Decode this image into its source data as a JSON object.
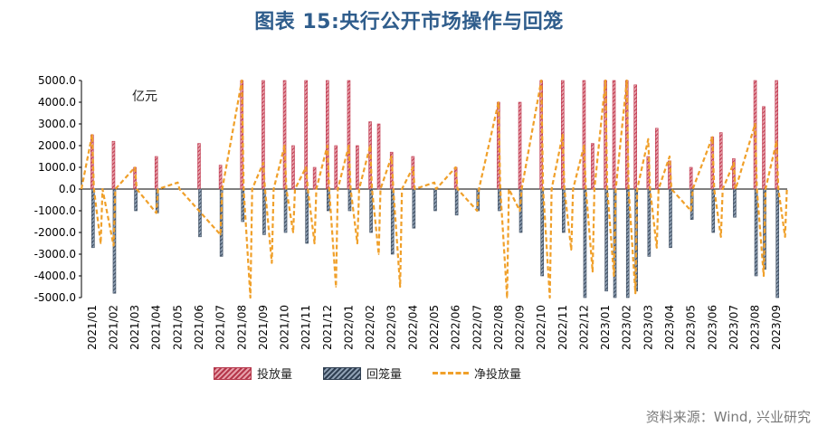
{
  "figure": {
    "title": "图表 15:央行公开市场操作与回笼",
    "unit": "亿元",
    "source": "资料来源：Wind, 兴业研究"
  },
  "legend": {
    "injection": "投放量",
    "withdrawal": "回笼量",
    "net": "净投放量"
  },
  "colors": {
    "injection": "#c0394f",
    "withdrawal": "#3b4b5f",
    "net": "#f0a02a"
  },
  "chart_data": {
    "type": "bar",
    "ylim": [
      -5000,
      5000
    ],
    "y_ticks": [
      "5000.0",
      "4000.0",
      "3000.0",
      "2000.0",
      "1000.0",
      "0.0",
      "-1000.0",
      "-2000.0",
      "-3000.0",
      "-4000.0",
      "-5000.0"
    ],
    "x_ticks": [
      "2021/01",
      "2021/02",
      "2021/03",
      "2021/04",
      "2021/05",
      "2021/06",
      "2021/07",
      "2021/08",
      "2021/09",
      "2021/10",
      "2021/11",
      "2021/12",
      "2022/01",
      "2022/02",
      "2022/03",
      "2022/04",
      "2022/05",
      "2022/06",
      "2022/07",
      "2022/08",
      "2022/09",
      "2022/10",
      "2022/11",
      "2022/12",
      "2023/01",
      "2023/02",
      "2023/03",
      "2023/04",
      "2023/05",
      "2023/06",
      "2023/07",
      "2023/08",
      "2023/09"
    ],
    "series": [
      {
        "name": "投放量",
        "points": [
          [
            "2021/01",
            2500
          ],
          [
            "2021/02",
            2200
          ],
          [
            "2021/03",
            1000
          ],
          [
            "2021/04",
            1500
          ],
          [
            "2021/06",
            2100
          ],
          [
            "2021/07",
            1100
          ],
          [
            "2021/08",
            5000
          ],
          [
            "2021/09",
            5000
          ],
          [
            "2021/10",
            5000
          ],
          [
            "2021/10b",
            2000
          ],
          [
            "2021/11",
            5000
          ],
          [
            "2021/11b",
            1000
          ],
          [
            "2021/12",
            5000
          ],
          [
            "2021/12b",
            2000
          ],
          [
            "2022/01",
            5000
          ],
          [
            "2022/01b",
            2000
          ],
          [
            "2022/02",
            3100
          ],
          [
            "2022/02b",
            3000
          ],
          [
            "2022/03",
            1700
          ],
          [
            "2022/04",
            1500
          ],
          [
            "2022/06",
            1000
          ],
          [
            "2022/08",
            4000
          ],
          [
            "2022/09",
            4000
          ],
          [
            "2022/10",
            5000
          ],
          [
            "2022/11",
            5000
          ],
          [
            "2022/12",
            5000
          ],
          [
            "2022/12b",
            2100
          ],
          [
            "2023/01",
            5000
          ],
          [
            "2023/01b",
            5000
          ],
          [
            "2023/02",
            5000
          ],
          [
            "2023/02b",
            4800
          ],
          [
            "2023/03",
            1500
          ],
          [
            "2023/03b",
            2800
          ],
          [
            "2023/04",
            1300
          ],
          [
            "2023/05",
            1000
          ],
          [
            "2023/06",
            2400
          ],
          [
            "2023/06b",
            2600
          ],
          [
            "2023/07",
            1400
          ],
          [
            "2023/08",
            5000
          ],
          [
            "2023/08b",
            3800
          ],
          [
            "2023/09",
            5000
          ]
        ]
      },
      {
        "name": "回笼量",
        "points": [
          [
            "2021/01",
            -2700
          ],
          [
            "2021/02",
            -4800
          ],
          [
            "2021/03",
            -1000
          ],
          [
            "2021/04",
            -1100
          ],
          [
            "2021/06",
            -2200
          ],
          [
            "2021/07",
            -3100
          ],
          [
            "2021/08",
            -1500
          ],
          [
            "2021/09",
            -2100
          ],
          [
            "2021/10",
            -2000
          ],
          [
            "2021/11",
            -2500
          ],
          [
            "2021/12",
            -1000
          ],
          [
            "2022/01",
            -1000
          ],
          [
            "2022/02",
            -2000
          ],
          [
            "2022/03",
            -3000
          ],
          [
            "2022/04",
            -1800
          ],
          [
            "2022/05",
            -1000
          ],
          [
            "2022/06",
            -1200
          ],
          [
            "2022/07",
            -1000
          ],
          [
            "2022/08",
            -1000
          ],
          [
            "2022/09",
            -2000
          ],
          [
            "2022/10",
            -4000
          ],
          [
            "2022/11",
            -2000
          ],
          [
            "2022/12",
            -5000
          ],
          [
            "2023/01",
            -4700
          ],
          [
            "2023/01b",
            -5000
          ],
          [
            "2023/02",
            -5000
          ],
          [
            "2023/02b",
            -4700
          ],
          [
            "2023/03",
            -3100
          ],
          [
            "2023/04",
            -2700
          ],
          [
            "2023/05",
            -1400
          ],
          [
            "2023/06",
            -2000
          ],
          [
            "2023/07",
            -1300
          ],
          [
            "2023/08",
            -4000
          ],
          [
            "2023/08b",
            -3700
          ],
          [
            "2023/09",
            -5000
          ]
        ]
      },
      {
        "name": "净投放量",
        "points": [
          [
            "2021/01",
            2500
          ],
          [
            "2021/01b",
            -2500
          ],
          [
            "2021/02",
            -2600
          ],
          [
            "2021/03",
            1000
          ],
          [
            "2021/04",
            -1100
          ],
          [
            "2021/05",
            300
          ],
          [
            "2021/07",
            -2100
          ],
          [
            "2021/08",
            5000
          ],
          [
            "2021/08b",
            -5000
          ],
          [
            "2021/09",
            1200
          ],
          [
            "2021/09b",
            -3400
          ],
          [
            "2021/10",
            2000
          ],
          [
            "2021/10b",
            -2000
          ],
          [
            "2021/11",
            1000
          ],
          [
            "2021/11b",
            -2500
          ],
          [
            "2021/12",
            2000
          ],
          [
            "2021/12b",
            -4500
          ],
          [
            "2022/01",
            2000
          ],
          [
            "2022/01b",
            -2500
          ],
          [
            "2022/02",
            2000
          ],
          [
            "2022/02b",
            -3000
          ],
          [
            "2022/03",
            1500
          ],
          [
            "2022/03b",
            -4500
          ],
          [
            "2022/04",
            1000
          ],
          [
            "2022/05",
            300
          ],
          [
            "2022/06",
            1000
          ],
          [
            "2022/07",
            -1000
          ],
          [
            "2022/08",
            4000
          ],
          [
            "2022/08b",
            -5000
          ],
          [
            "2022/09",
            -1000
          ],
          [
            "2022/10",
            5000
          ],
          [
            "2022/10b",
            -5000
          ],
          [
            "2022/11",
            2500
          ],
          [
            "2022/11b",
            -2800
          ],
          [
            "2022/12",
            2000
          ],
          [
            "2022/12b",
            -3800
          ],
          [
            "2023/01",
            5000
          ],
          [
            "2023/01b",
            -4000
          ],
          [
            "2023/02",
            5000
          ],
          [
            "2023/02b",
            -4800
          ],
          [
            "2023/03",
            2300
          ],
          [
            "2023/03b",
            -2700
          ],
          [
            "2023/04",
            1500
          ],
          [
            "2023/05",
            -1000
          ],
          [
            "2023/06",
            2400
          ],
          [
            "2023/06b",
            -2200
          ],
          [
            "2023/07",
            1200
          ],
          [
            "2023/08",
            3000
          ],
          [
            "2023/08b",
            -4000
          ],
          [
            "2023/09",
            2200
          ],
          [
            "2023/09b",
            -2200
          ]
        ]
      }
    ]
  }
}
